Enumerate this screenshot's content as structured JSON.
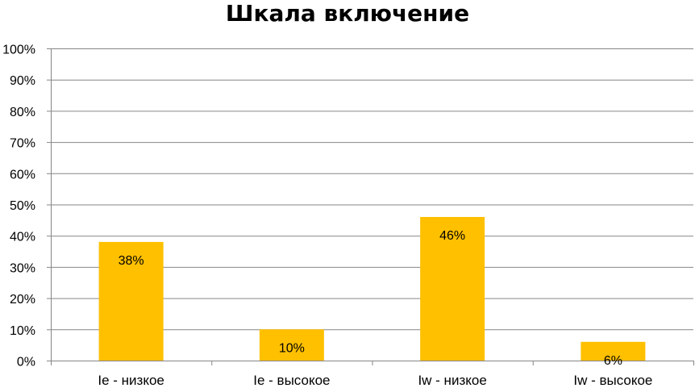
{
  "chart_data": {
    "type": "bar",
    "title": "Шкала включение",
    "categories": [
      "Ie - низкое",
      "Ie - высокое",
      "Iw - низкое",
      "Iw - высокое"
    ],
    "values": [
      38,
      10,
      46,
      6
    ],
    "data_labels": [
      "38%",
      "10%",
      "46%",
      "6%"
    ],
    "ylim": [
      0,
      100
    ],
    "y_ticks": [
      "0%",
      "10%",
      "20%",
      "30%",
      "40%",
      "50%",
      "60%",
      "70%",
      "80%",
      "90%",
      "100%"
    ],
    "xlabel": "",
    "ylabel": "",
    "grid": true,
    "legend": false,
    "bar_color": "#FFC000",
    "grid_color": "#868686"
  }
}
